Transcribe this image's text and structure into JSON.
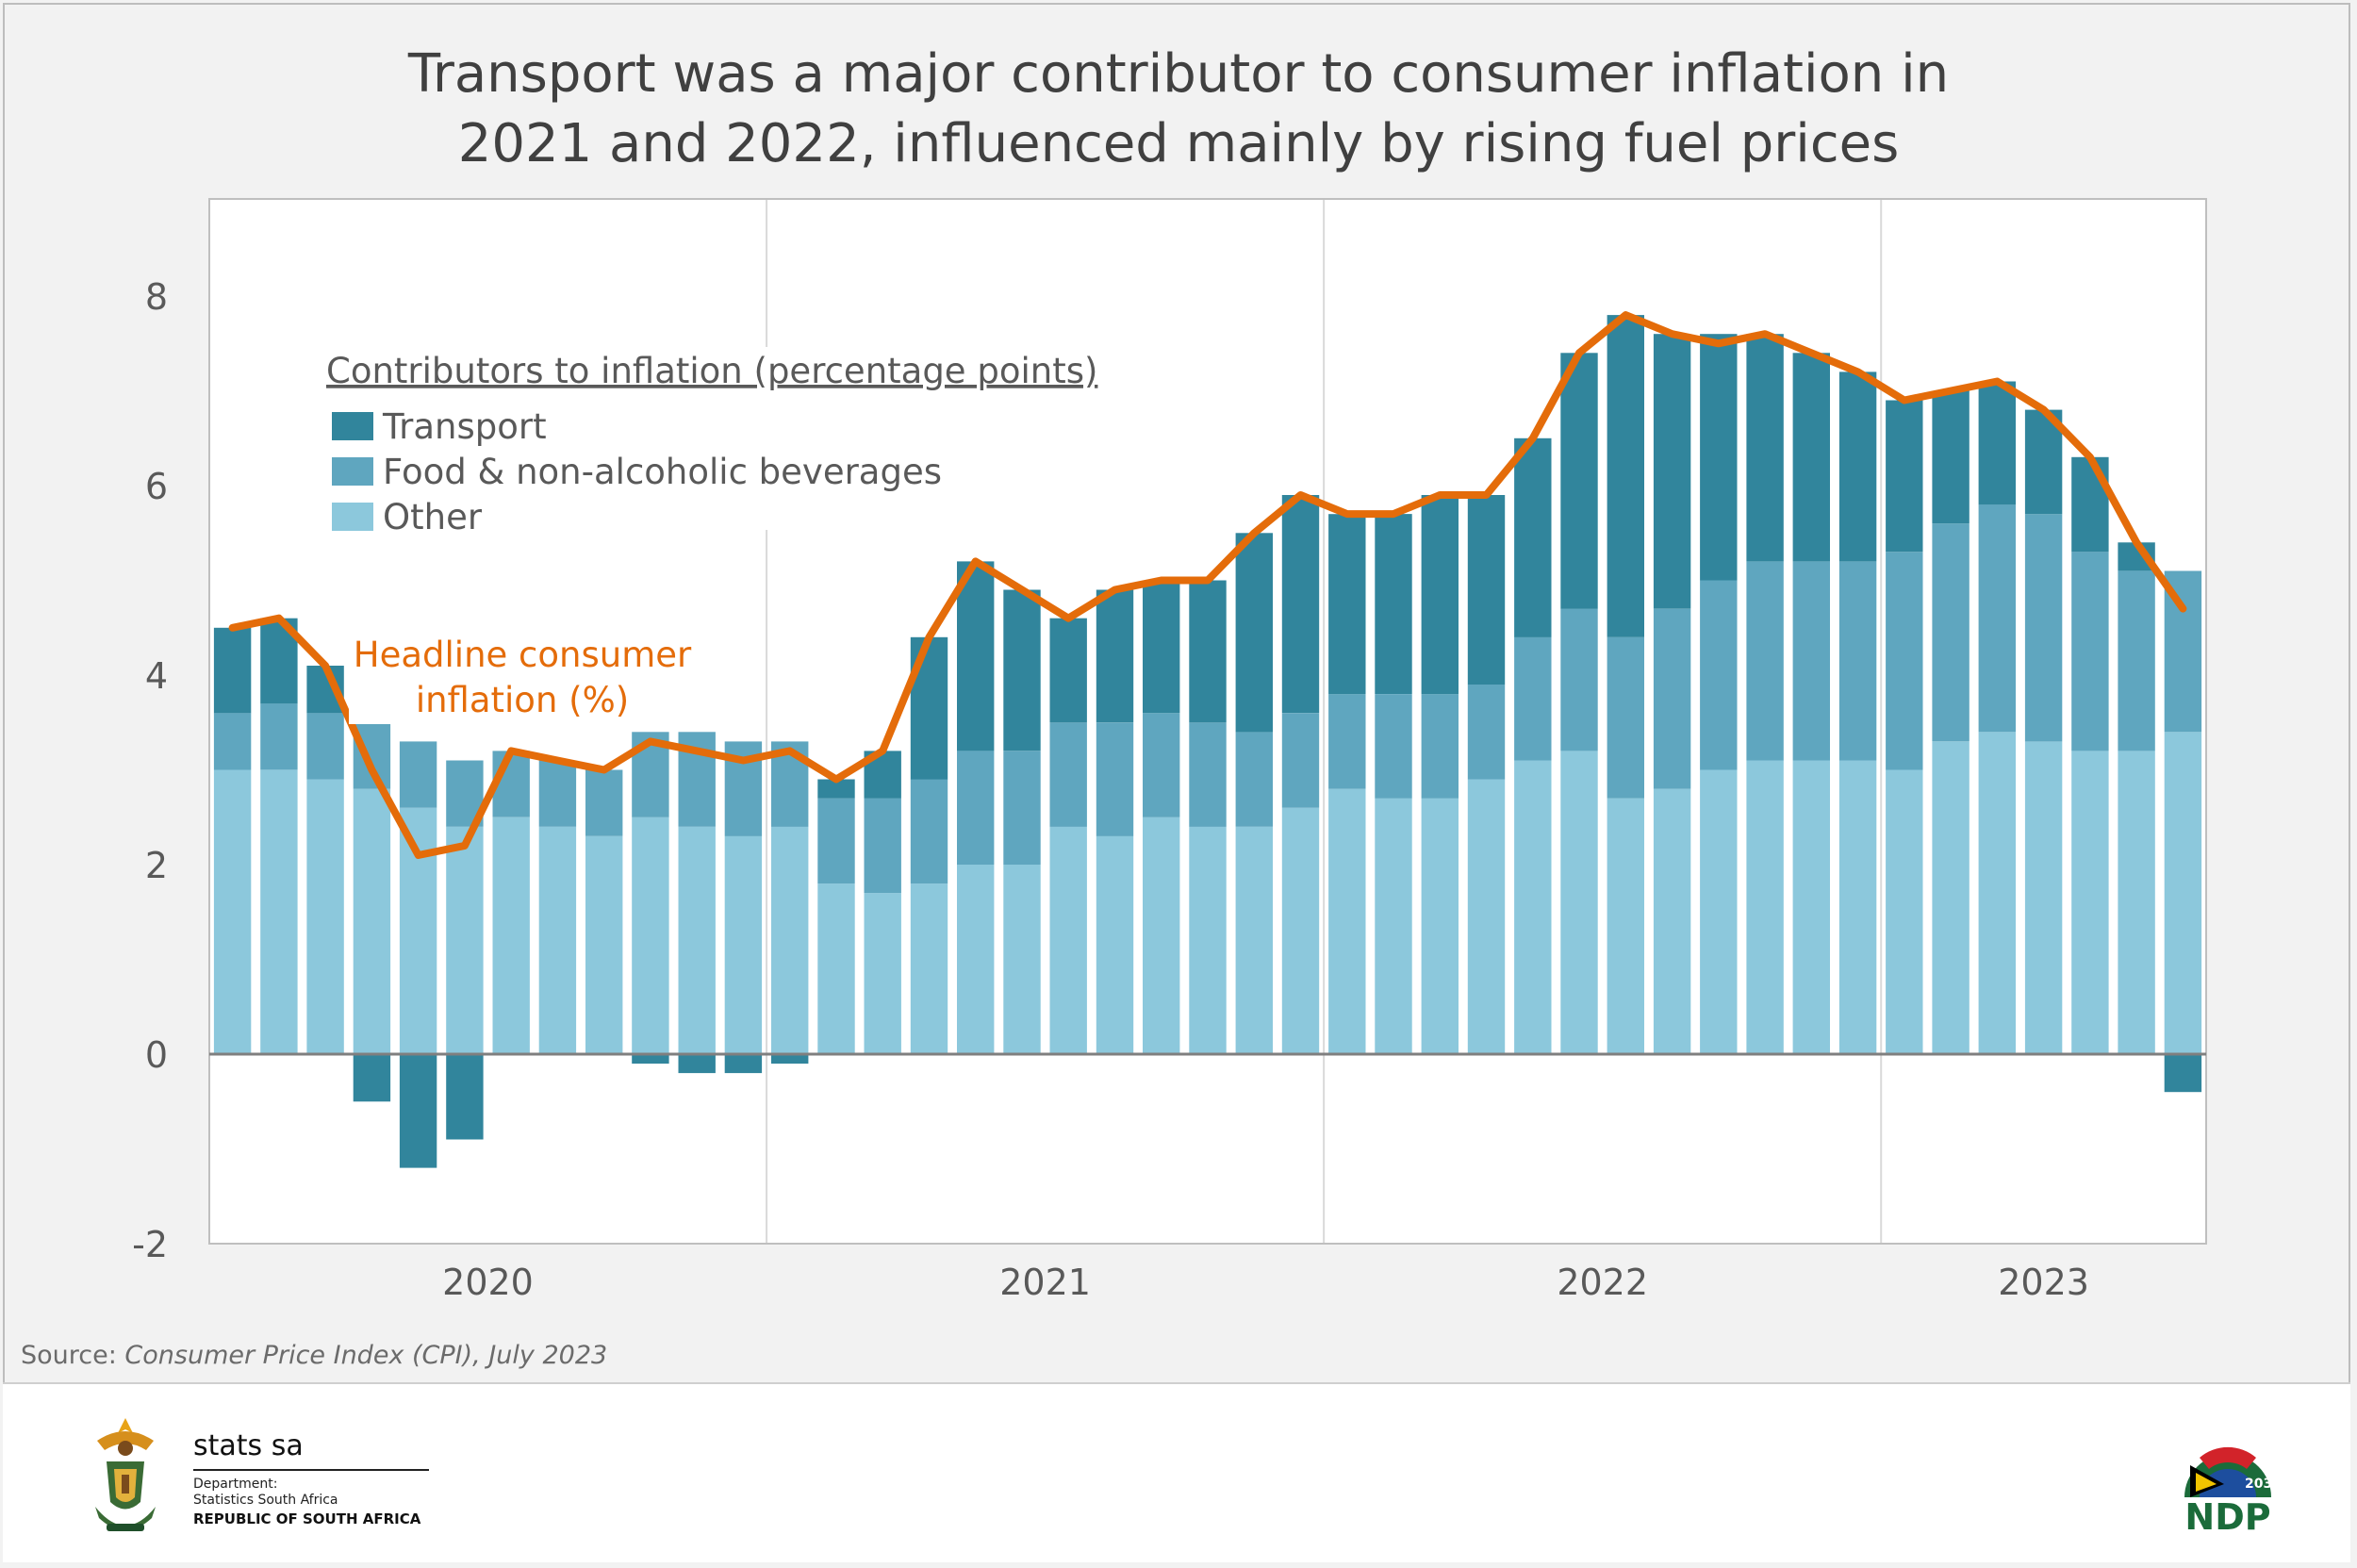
{
  "title": {
    "line1": "Transport was a major contributor to consumer inflation in",
    "line2": "2021 and 2022, influenced mainly by rising fuel prices"
  },
  "legend": {
    "heading": "Contributors to inflation (percentage points)",
    "items": [
      {
        "label": "Transport",
        "color": "#31859c"
      },
      {
        "label": "Food & non-alcoholic beverages",
        "color": "#5fa6bf"
      },
      {
        "label": "Other",
        "color": "#8cc8dc"
      }
    ]
  },
  "line_annotation": {
    "line1": "Headline consumer",
    "line2": "inflation (%)",
    "color": "#e46c0a"
  },
  "source": {
    "prefix": "Source: ",
    "text": "Consumer Price Index (CPI), July 2023"
  },
  "footer": {
    "stats_name": "stats sa",
    "dept_line1": "Department:",
    "dept_line2": "Statistics South Africa",
    "rsa": "REPUBLIC OF SOUTH AFRICA",
    "ndp_year": "2030",
    "ndp_text": "NDP"
  },
  "chart_data": {
    "type": "bar",
    "stacked": true,
    "title": "Transport was a major contributor to consumer inflation in 2021 and 2022, influenced mainly by rising fuel prices",
    "xlabel": "",
    "ylabel": "",
    "ylim": [
      -2,
      9
    ],
    "yticks": [
      -2,
      0,
      2,
      4,
      6,
      8
    ],
    "year_labels": [
      "2020",
      "2021",
      "2022",
      "2023"
    ],
    "categories": [
      "Jan 2020",
      "Feb 2020",
      "Mar 2020",
      "Apr 2020",
      "May 2020",
      "Jun 2020",
      "Jul 2020",
      "Aug 2020",
      "Sep 2020",
      "Oct 2020",
      "Nov 2020",
      "Dec 2020",
      "Jan 2021",
      "Feb 2021",
      "Mar 2021",
      "Apr 2021",
      "May 2021",
      "Jun 2021",
      "Jul 2021",
      "Aug 2021",
      "Sep 2021",
      "Oct 2021",
      "Nov 2021",
      "Dec 2021",
      "Jan 2022",
      "Feb 2022",
      "Mar 2022",
      "Apr 2022",
      "May 2022",
      "Jun 2022",
      "Jul 2022",
      "Aug 2022",
      "Sep 2022",
      "Oct 2022",
      "Nov 2022",
      "Dec 2022",
      "Jan 2023",
      "Feb 2023",
      "Mar 2023",
      "Apr 2023",
      "May 2023",
      "Jun 2023",
      "Jul 2023"
    ],
    "series": [
      {
        "name": "Other",
        "color": "#8cc8dc",
        "values": [
          3.0,
          3.0,
          2.9,
          2.8,
          2.6,
          2.4,
          2.5,
          2.4,
          2.3,
          2.5,
          2.4,
          2.3,
          2.4,
          1.8,
          1.7,
          1.8,
          2.0,
          2.0,
          2.4,
          2.3,
          2.5,
          2.4,
          2.4,
          2.6,
          2.8,
          2.7,
          2.7,
          2.9,
          3.1,
          3.2,
          2.7,
          2.8,
          3.0,
          3.1,
          3.1,
          3.1,
          3.0,
          3.3,
          3.4,
          3.3,
          3.2,
          3.2,
          3.4
        ]
      },
      {
        "name": "Food & non-alcoholic beverages",
        "color": "#5fa6bf",
        "values": [
          0.6,
          0.7,
          0.7,
          0.7,
          0.7,
          0.7,
          0.7,
          0.7,
          0.7,
          0.9,
          1.0,
          1.0,
          0.9,
          0.9,
          1.0,
          1.1,
          1.2,
          1.2,
          1.1,
          1.2,
          1.1,
          1.1,
          1.0,
          1.0,
          1.0,
          1.1,
          1.1,
          1.0,
          1.3,
          1.5,
          1.7,
          1.9,
          2.0,
          2.1,
          2.1,
          2.1,
          2.3,
          2.3,
          2.4,
          2.4,
          2.1,
          1.9,
          1.7
        ]
      },
      {
        "name": "Transport",
        "color": "#31859c",
        "values": [
          0.9,
          0.9,
          0.5,
          -0.5,
          -1.2,
          -0.9,
          0.0,
          0.0,
          0.0,
          -0.1,
          -0.2,
          -0.2,
          -0.1,
          0.2,
          0.5,
          1.5,
          2.0,
          1.7,
          1.1,
          1.4,
          1.4,
          1.5,
          2.1,
          2.3,
          1.9,
          1.9,
          2.1,
          2.0,
          2.1,
          2.7,
          3.4,
          2.9,
          2.6,
          2.4,
          2.2,
          2.0,
          1.6,
          1.4,
          1.3,
          1.1,
          1.0,
          0.3,
          -0.4
        ]
      }
    ],
    "line_series": {
      "name": "Headline consumer inflation (%)",
      "color": "#e46c0a",
      "values": [
        4.5,
        4.6,
        4.1,
        3.0,
        2.1,
        2.2,
        3.2,
        3.1,
        3.0,
        3.3,
        3.2,
        3.1,
        3.2,
        2.9,
        3.2,
        4.4,
        5.2,
        4.9,
        4.6,
        4.9,
        5.0,
        5.0,
        5.5,
        5.9,
        5.7,
        5.7,
        5.9,
        5.9,
        6.5,
        7.4,
        7.8,
        7.6,
        7.5,
        7.6,
        7.4,
        7.2,
        6.9,
        7.0,
        7.1,
        6.8,
        6.3,
        5.4,
        4.7
      ]
    }
  }
}
